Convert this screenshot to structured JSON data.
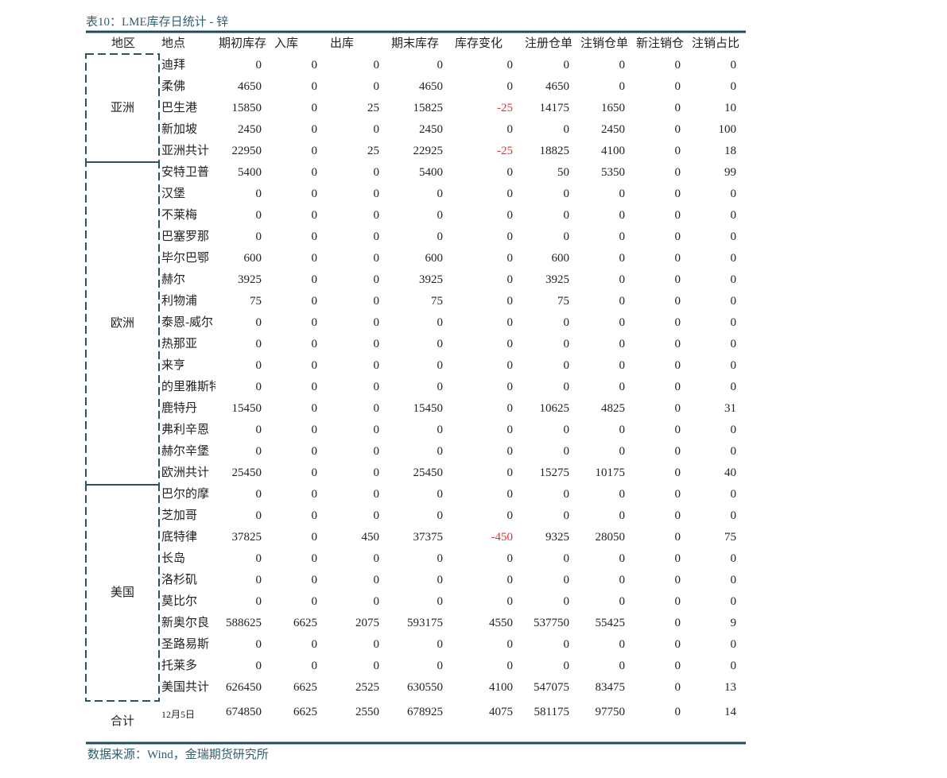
{
  "title": "表10：LME库存日统计 - 锌",
  "table": {
    "header": [
      "地区",
      "地点",
      "期初库存",
      "入库",
      "出库",
      "期末库存",
      "库存变化",
      "注册仓单",
      "注销仓单",
      "新注销仓",
      "注销占比"
    ],
    "groups": [
      {
        "region": "亚洲",
        "rows": [
          {
            "location": "迪拜",
            "values": [
              0,
              0,
              0,
              0,
              0,
              0,
              0,
              0,
              0
            ]
          },
          {
            "location": "柔佛",
            "values": [
              4650,
              0,
              0,
              4650,
              0,
              4650,
              0,
              0,
              0
            ]
          },
          {
            "location": "巴生港",
            "values": [
              15850,
              0,
              25,
              15825,
              -25,
              14175,
              1650,
              0,
              10
            ]
          },
          {
            "location": "新加坡",
            "values": [
              2450,
              0,
              0,
              2450,
              0,
              0,
              2450,
              0,
              100
            ]
          },
          {
            "location": "亚洲共计",
            "values": [
              22950,
              0,
              25,
              22925,
              -25,
              18825,
              4100,
              0,
              18
            ]
          }
        ]
      },
      {
        "region": "欧洲",
        "rows": [
          {
            "location": "安特卫普",
            "values": [
              5400,
              0,
              0,
              5400,
              0,
              50,
              5350,
              0,
              99
            ]
          },
          {
            "location": "汉堡",
            "values": [
              0,
              0,
              0,
              0,
              0,
              0,
              0,
              0,
              0
            ]
          },
          {
            "location": "不莱梅",
            "values": [
              0,
              0,
              0,
              0,
              0,
              0,
              0,
              0,
              0
            ]
          },
          {
            "location": "巴塞罗那",
            "values": [
              0,
              0,
              0,
              0,
              0,
              0,
              0,
              0,
              0
            ]
          },
          {
            "location": "毕尔巴鄂",
            "values": [
              600,
              0,
              0,
              600,
              0,
              600,
              0,
              0,
              0
            ]
          },
          {
            "location": "赫尔",
            "values": [
              3925,
              0,
              0,
              3925,
              0,
              3925,
              0,
              0,
              0
            ]
          },
          {
            "location": "利物浦",
            "values": [
              75,
              0,
              0,
              75,
              0,
              75,
              0,
              0,
              0
            ]
          },
          {
            "location": "泰恩-威尔",
            "values": [
              0,
              0,
              0,
              0,
              0,
              0,
              0,
              0,
              0
            ]
          },
          {
            "location": "热那亚",
            "values": [
              0,
              0,
              0,
              0,
              0,
              0,
              0,
              0,
              0
            ]
          },
          {
            "location": "来亨",
            "values": [
              0,
              0,
              0,
              0,
              0,
              0,
              0,
              0,
              0
            ]
          },
          {
            "location": "的里雅斯特",
            "values": [
              0,
              0,
              0,
              0,
              0,
              0,
              0,
              0,
              0
            ]
          },
          {
            "location": "鹿特丹",
            "values": [
              15450,
              0,
              0,
              15450,
              0,
              10625,
              4825,
              0,
              31
            ]
          },
          {
            "location": "弗利辛恩",
            "values": [
              0,
              0,
              0,
              0,
              0,
              0,
              0,
              0,
              0
            ]
          },
          {
            "location": "赫尔辛堡",
            "values": [
              0,
              0,
              0,
              0,
              0,
              0,
              0,
              0,
              0
            ]
          },
          {
            "location": "欧洲共计",
            "values": [
              25450,
              0,
              0,
              25450,
              0,
              15275,
              10175,
              0,
              40
            ]
          }
        ]
      },
      {
        "region": "美国",
        "rows": [
          {
            "location": "巴尔的摩",
            "values": [
              0,
              0,
              0,
              0,
              0,
              0,
              0,
              0,
              0
            ]
          },
          {
            "location": "芝加哥",
            "values": [
              0,
              0,
              0,
              0,
              0,
              0,
              0,
              0,
              0
            ]
          },
          {
            "location": "底特律",
            "values": [
              37825,
              0,
              450,
              37375,
              -450,
              9325,
              28050,
              0,
              75
            ]
          },
          {
            "location": "长岛",
            "values": [
              0,
              0,
              0,
              0,
              0,
              0,
              0,
              0,
              0
            ]
          },
          {
            "location": "洛杉矶",
            "values": [
              0,
              0,
              0,
              0,
              0,
              0,
              0,
              0,
              0
            ]
          },
          {
            "location": "莫比尔",
            "values": [
              0,
              0,
              0,
              0,
              0,
              0,
              0,
              0,
              0
            ]
          },
          {
            "location": "新奥尔良",
            "values": [
              588625,
              6625,
              2075,
              593175,
              4550,
              537750,
              55425,
              0,
              9
            ]
          },
          {
            "location": "圣路易斯",
            "values": [
              0,
              0,
              0,
              0,
              0,
              0,
              0,
              0,
              0
            ]
          },
          {
            "location": "托莱多",
            "values": [
              0,
              0,
              0,
              0,
              0,
              0,
              0,
              0,
              0
            ]
          },
          {
            "location": "美国共计",
            "values": [
              626450,
              6625,
              2525,
              630550,
              4100,
              547075,
              83475,
              0,
              13
            ]
          }
        ]
      }
    ],
    "total": {
      "label": "合计",
      "date": "12月5日",
      "values": [
        674850,
        6625,
        2550,
        678925,
        4075,
        581175,
        97750,
        0,
        14
      ]
    }
  },
  "source": "数据来源：Wind，金瑞期货研究所"
}
